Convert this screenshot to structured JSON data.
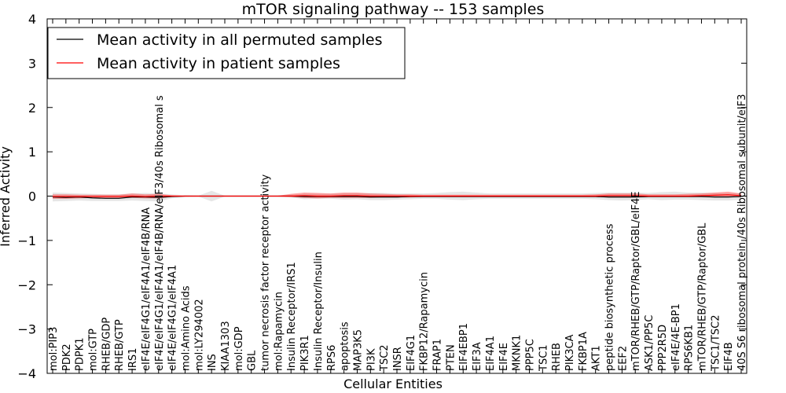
{
  "chart_data": {
    "type": "line",
    "title": "mTOR signaling pathway -- 153 samples",
    "xlabel": "Cellular Entities",
    "ylabel": "Inferred Activity",
    "ylim": [
      -4,
      4
    ],
    "yticks": [
      -4,
      -3,
      -2,
      -1,
      0,
      1,
      2,
      3,
      4
    ],
    "ytick_labels": [
      "−4",
      "−3",
      "−2",
      "−1",
      "0",
      "1",
      "2",
      "3",
      "4"
    ],
    "legend_position": "top-left",
    "categories": [
      "mol:PIP3",
      "PDK2",
      "PDPK1",
      "mol:GTP",
      "RHEB/GDP",
      "RHEB/GTP",
      "IRS1",
      "eIF4E/eIF4G1/eIF4A1/eIF4B/RNA",
      "eIF4E/eIF4G1/eIF4A1/eIF4B/RNA/eIF3/40s Ribosomal s",
      "eIF4E/eIF4G1/eIF4A1",
      "mol:Amino Acids",
      "mol:LY294002",
      "INS",
      "KIAA1303",
      "mol:GDP",
      "GBL",
      "tumor necrosis factor receptor activity",
      "mol:Rapamycin",
      "Insulin Receptor/IRS1",
      "PIK3R1",
      "Insulin Receptor/Insulin",
      "RPS6",
      "apoptosis",
      "MAP3K5",
      "PI3K",
      "TSC2",
      "INSR",
      "EIF4G1",
      "FKBP12/Rapamycin",
      "FRAP1",
      "PTEN",
      "EIF4EBP1",
      "EIF3A",
      "EIF4A1",
      "EIF4E",
      "MKNK1",
      "PPP5C",
      "TSC1",
      "RHEB",
      "PIK3CA",
      "FKBP1A",
      "AKT1",
      "peptide biosynthetic process",
      "EEF2",
      "mTOR/RHEB/GTP/Raptor/GBL/eIF4E",
      "ASK1/PP5C",
      "PPP2R5D",
      "eIF4E/4E-BP1",
      "RPS6KB1",
      "mTOR/RHEB/GTP/Raptor/GBL",
      "TSC1/TSC2",
      "EIF4B",
      "40S S6 ribosomal protein /40s Ribosomal subunit/eIF3"
    ],
    "series": [
      {
        "name": "Mean activity in all permuted samples",
        "color": "#000000",
        "values": [
          -0.02,
          -0.03,
          -0.02,
          -0.04,
          -0.05,
          -0.05,
          -0.02,
          -0.02,
          -0.03,
          -0.01,
          0.0,
          0.0,
          0.0,
          0.0,
          0.0,
          0.0,
          0.0,
          0.0,
          0.0,
          -0.01,
          -0.01,
          -0.01,
          -0.01,
          -0.01,
          -0.02,
          -0.02,
          -0.02,
          -0.01,
          -0.01,
          -0.01,
          -0.01,
          -0.01,
          -0.01,
          -0.01,
          -0.01,
          -0.01,
          -0.01,
          -0.01,
          -0.01,
          -0.01,
          -0.01,
          -0.01,
          -0.02,
          -0.02,
          -0.02,
          -0.01,
          -0.01,
          -0.01,
          -0.01,
          -0.01,
          -0.02,
          -0.02,
          -0.01
        ],
        "band_low": [
          -0.12,
          -0.11,
          -0.1,
          -0.11,
          -0.11,
          -0.11,
          -0.1,
          -0.11,
          -0.12,
          -0.05,
          -0.02,
          -0.01,
          -0.12,
          -0.01,
          -0.01,
          -0.01,
          -0.01,
          -0.01,
          -0.03,
          -0.07,
          -0.06,
          -0.06,
          -0.08,
          -0.07,
          -0.09,
          -0.09,
          -0.08,
          -0.07,
          -0.06,
          -0.06,
          -0.08,
          -0.09,
          -0.07,
          -0.06,
          -0.06,
          -0.06,
          -0.06,
          -0.06,
          -0.06,
          -0.06,
          -0.06,
          -0.07,
          -0.09,
          -0.1,
          -0.09,
          -0.07,
          -0.09,
          -0.08,
          -0.08,
          -0.09,
          -0.1,
          -0.1,
          -0.08
        ],
        "band_high": [
          0.08,
          0.07,
          0.06,
          0.05,
          0.04,
          0.04,
          0.06,
          0.07,
          0.06,
          0.04,
          0.02,
          0.01,
          0.12,
          0.01,
          0.01,
          0.01,
          0.01,
          0.01,
          0.03,
          0.05,
          0.05,
          0.05,
          0.06,
          0.06,
          0.07,
          0.07,
          0.06,
          0.06,
          0.06,
          0.07,
          0.09,
          0.1,
          0.08,
          0.06,
          0.06,
          0.06,
          0.06,
          0.06,
          0.06,
          0.06,
          0.06,
          0.07,
          0.08,
          0.08,
          0.08,
          0.07,
          0.09,
          0.1,
          0.08,
          0.08,
          0.07,
          0.06,
          0.06
        ]
      },
      {
        "name": "Mean activity in patient samples",
        "color": "#ff0000",
        "values": [
          -0.01,
          -0.01,
          -0.01,
          -0.01,
          -0.01,
          -0.01,
          0.0,
          -0.01,
          0.0,
          0.0,
          0.0,
          0.0,
          0.0,
          0.0,
          0.0,
          0.0,
          0.0,
          0.0,
          0.0,
          0.01,
          0.0,
          0.0,
          0.01,
          0.01,
          0.0,
          0.0,
          0.0,
          0.0,
          0.0,
          0.0,
          0.0,
          0.0,
          0.0,
          0.0,
          0.0,
          0.0,
          0.0,
          0.0,
          0.0,
          0.0,
          0.0,
          0.0,
          0.01,
          0.01,
          0.01,
          0.0,
          0.0,
          0.0,
          0.0,
          0.01,
          0.02,
          0.03,
          0.01
        ],
        "band_low": [
          -0.06,
          -0.06,
          -0.05,
          -0.04,
          -0.04,
          -0.04,
          -0.04,
          -0.05,
          -0.05,
          -0.02,
          -0.01,
          -0.01,
          -0.01,
          -0.01,
          -0.01,
          -0.01,
          -0.01,
          -0.01,
          -0.02,
          -0.04,
          -0.05,
          -0.04,
          -0.04,
          -0.04,
          -0.04,
          -0.03,
          -0.03,
          -0.03,
          -0.02,
          -0.02,
          -0.02,
          -0.02,
          -0.02,
          -0.02,
          -0.02,
          -0.02,
          -0.02,
          -0.02,
          -0.02,
          -0.02,
          -0.02,
          -0.02,
          -0.03,
          -0.03,
          -0.03,
          -0.02,
          -0.02,
          -0.02,
          -0.02,
          -0.02,
          -0.02,
          -0.02,
          -0.02
        ],
        "band_high": [
          0.04,
          0.04,
          0.03,
          0.03,
          0.03,
          0.03,
          0.06,
          0.04,
          0.05,
          0.02,
          0.01,
          0.01,
          0.01,
          0.01,
          0.01,
          0.01,
          0.01,
          0.01,
          0.05,
          0.08,
          0.07,
          0.06,
          0.08,
          0.08,
          0.06,
          0.05,
          0.04,
          0.04,
          0.03,
          0.03,
          0.03,
          0.03,
          0.03,
          0.03,
          0.03,
          0.03,
          0.03,
          0.03,
          0.03,
          0.03,
          0.03,
          0.04,
          0.06,
          0.06,
          0.06,
          0.04,
          0.04,
          0.04,
          0.05,
          0.06,
          0.08,
          0.1,
          0.06
        ]
      }
    ]
  }
}
